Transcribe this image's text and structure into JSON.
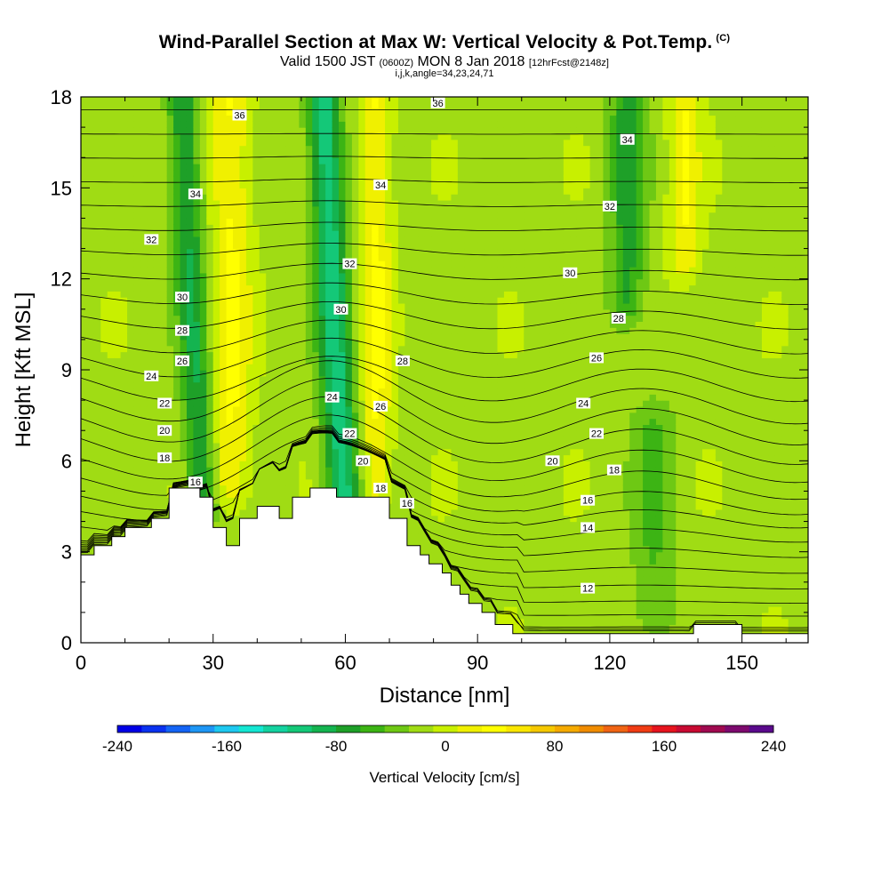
{
  "title": {
    "main": "Wind-Parallel Section at Max W: Vertical Velocity & Pot.Temp.",
    "copyright": "(C)",
    "valid_a": "Valid 1500 JST",
    "valid_b": "(0600Z)",
    "valid_c": "MON 8 Jan 2018",
    "valid_d": "[12hrFcst@2148z]",
    "ijk": "i,j,k,angle=34,23,24,71"
  },
  "chart_data": {
    "type": "heatmap",
    "xlabel": "Distance [nm]",
    "ylabel": "Height [Kft MSL]",
    "xlim": [
      0,
      165
    ],
    "ylim": [
      0,
      18
    ],
    "x_ticks": [
      0,
      30,
      60,
      90,
      120,
      150
    ],
    "y_ticks": [
      0,
      3,
      6,
      9,
      12,
      15,
      18
    ],
    "colorbar": {
      "title": "Vertical Velocity [cm/s]",
      "range": [
        -240,
        240
      ],
      "tick_values": [
        -240,
        -160,
        -80,
        0,
        80,
        160,
        240
      ],
      "tick_labels": [
        "-240",
        "-160",
        "-80",
        "0",
        "80",
        "160",
        "240"
      ],
      "colors": [
        "#0000e6",
        "#0a32f0",
        "#1464f5",
        "#1e96f5",
        "#1ec8f0",
        "#14e6d2",
        "#14d2a0",
        "#14c878",
        "#14b450",
        "#1ea028",
        "#3cb414",
        "#6ec814",
        "#a0dc14",
        "#c8f000",
        "#f0f000",
        "#ffff00",
        "#fae600",
        "#f5c800",
        "#f5aa00",
        "#f08c00",
        "#f06414",
        "#f03c14",
        "#e6141e",
        "#c80a32",
        "#a00a50",
        "#7d0a6e",
        "#5a0a8c"
      ]
    },
    "w_field": {
      "description_free": true,
      "features": [
        {
          "x": 25,
          "w": -65,
          "width": 3.5,
          "zmin": 5,
          "zmax": 18
        },
        {
          "x": 34,
          "w": 45,
          "width": 4.5,
          "zmin": 5.5,
          "zmax": 18
        },
        {
          "x": 57,
          "w": -95,
          "width": 3.8,
          "zmin": 5,
          "zmax": 18
        },
        {
          "x": 67,
          "w": 45,
          "width": 3.5,
          "zmin": 5.5,
          "zmax": 18
        },
        {
          "x": 124,
          "w": -55,
          "width": 4,
          "zmin": 11.5,
          "zmax": 18
        },
        {
          "x": 137,
          "w": 40,
          "width": 3.5,
          "zmin": 13,
          "zmax": 18
        },
        {
          "x": 130,
          "w": -30,
          "width": 5,
          "zmin": 1,
          "zmax": 7
        }
      ],
      "background_w": -15
    },
    "terrain": [
      [
        0,
        2.9
      ],
      [
        3,
        2.9
      ],
      [
        3,
        3.2
      ],
      [
        7,
        3.2
      ],
      [
        7,
        3.5
      ],
      [
        10,
        3.5
      ],
      [
        10,
        3.8
      ],
      [
        16,
        3.8
      ],
      [
        16,
        4.1
      ],
      [
        20,
        4.1
      ],
      [
        20,
        5.1
      ],
      [
        27,
        5.1
      ],
      [
        27,
        4.8
      ],
      [
        30,
        4.8
      ],
      [
        30,
        3.8
      ],
      [
        33,
        3.8
      ],
      [
        33,
        3.2
      ],
      [
        36,
        3.2
      ],
      [
        36,
        4.1
      ],
      [
        40,
        4.1
      ],
      [
        40,
        4.5
      ],
      [
        45,
        4.5
      ],
      [
        45,
        4.1
      ],
      [
        48,
        4.1
      ],
      [
        48,
        4.8
      ],
      [
        52,
        4.8
      ],
      [
        52,
        5.1
      ],
      [
        58,
        5.1
      ],
      [
        58,
        4.8
      ],
      [
        70,
        4.8
      ],
      [
        70,
        4.1
      ],
      [
        74,
        4.1
      ],
      [
        74,
        3.2
      ],
      [
        77,
        3.2
      ],
      [
        77,
        2.9
      ],
      [
        79,
        2.9
      ],
      [
        79,
        2.6
      ],
      [
        82,
        2.6
      ],
      [
        82,
        2.3
      ],
      [
        84,
        2.3
      ],
      [
        84,
        1.9
      ],
      [
        86,
        1.9
      ],
      [
        86,
        1.6
      ],
      [
        88,
        1.6
      ],
      [
        88,
        1.3
      ],
      [
        91,
        1.3
      ],
      [
        91,
        1.0
      ],
      [
        94,
        1.0
      ],
      [
        94,
        0.6
      ],
      [
        98,
        0.6
      ],
      [
        98,
        0.3
      ],
      [
        139,
        0.3
      ],
      [
        139,
        0.6
      ],
      [
        150,
        0.6
      ],
      [
        150,
        0.3
      ],
      [
        165,
        0.3
      ]
    ],
    "isentropes": [
      {
        "value": 12,
        "label_at": [
          115,
          1.8
        ]
      },
      {
        "value": 14,
        "label_at": [
          115,
          3.8
        ]
      },
      {
        "value": 16,
        "label_at": [
          26,
          5.3
        ]
      },
      {
        "value": 16,
        "label_at": [
          74,
          4.6
        ]
      },
      {
        "value": 16,
        "label_at": [
          115,
          4.7
        ]
      },
      {
        "value": 18,
        "label_at": [
          19,
          6.1
        ]
      },
      {
        "value": 18,
        "label_at": [
          68,
          5.1
        ]
      },
      {
        "value": 18,
        "label_at": [
          121,
          5.7
        ]
      },
      {
        "value": 20,
        "label_at": [
          19,
          7.0
        ]
      },
      {
        "value": 20,
        "label_at": [
          64,
          6.0
        ]
      },
      {
        "value": 20,
        "label_at": [
          107,
          6.0
        ]
      },
      {
        "value": 22,
        "label_at": [
          19,
          7.9
        ]
      },
      {
        "value": 22,
        "label_at": [
          61,
          6.9
        ]
      },
      {
        "value": 22,
        "label_at": [
          117,
          6.9
        ]
      },
      {
        "value": 24,
        "label_at": [
          16,
          8.8
        ]
      },
      {
        "value": 24,
        "label_at": [
          57,
          8.1
        ]
      },
      {
        "value": 24,
        "label_at": [
          114,
          7.9
        ]
      },
      {
        "value": 26,
        "label_at": [
          23,
          9.3
        ]
      },
      {
        "value": 26,
        "label_at": [
          68,
          7.8
        ]
      },
      {
        "value": 26,
        "label_at": [
          117,
          9.4
        ]
      },
      {
        "value": 28,
        "label_at": [
          23,
          10.3
        ]
      },
      {
        "value": 28,
        "label_at": [
          73,
          9.3
        ]
      },
      {
        "value": 28,
        "label_at": [
          122,
          10.7
        ]
      },
      {
        "value": 30,
        "label_at": [
          23,
          11.4
        ]
      },
      {
        "value": 30,
        "label_at": [
          59,
          11.0
        ]
      },
      {
        "value": 30,
        "label_at": [
          111,
          12.2
        ]
      },
      {
        "value": 32,
        "label_at": [
          16,
          13.3
        ]
      },
      {
        "value": 32,
        "label_at": [
          61,
          12.5
        ]
      },
      {
        "value": 32,
        "label_at": [
          120,
          14.4
        ]
      },
      {
        "value": 34,
        "label_at": [
          26,
          14.8
        ]
      },
      {
        "value": 34,
        "label_at": [
          68,
          15.1
        ]
      },
      {
        "value": 34,
        "label_at": [
          124,
          16.6
        ]
      },
      {
        "value": 36,
        "label_at": [
          36,
          17.4
        ]
      },
      {
        "value": 36,
        "label_at": [
          81,
          17.8
        ]
      }
    ]
  }
}
